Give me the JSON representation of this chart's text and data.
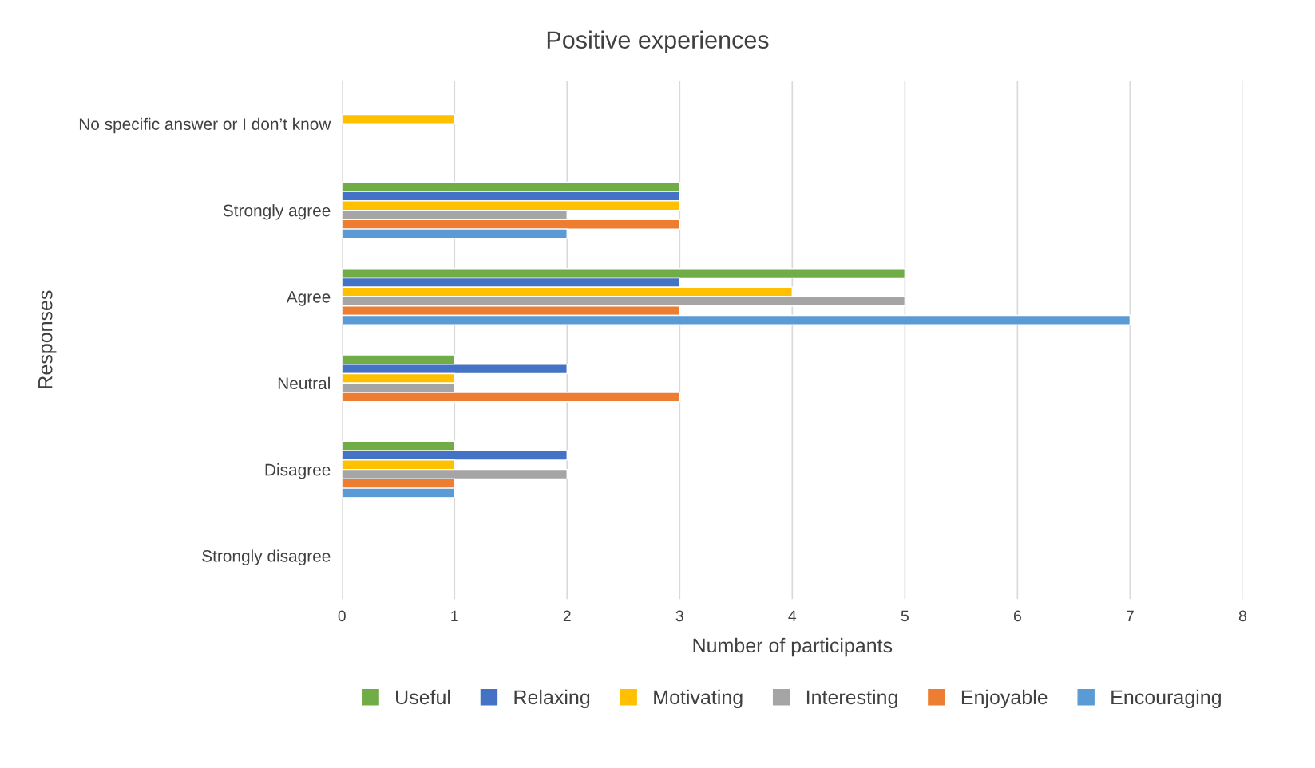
{
  "chart_data": {
    "type": "bar",
    "orientation": "horizontal",
    "title": "Positive experiences",
    "xlabel": "Number of participants",
    "ylabel": "Responses",
    "categories": [
      "No specific answer or I don’t know",
      "Strongly agree",
      "Agree",
      "Neutral",
      "Disagree",
      "Strongly disagree"
    ],
    "series": [
      {
        "name": "Useful",
        "color": "#70ad47",
        "values": [
          null,
          3,
          5,
          1,
          1,
          null
        ]
      },
      {
        "name": "Relaxing",
        "color": "#4472c4",
        "values": [
          null,
          3,
          3,
          2,
          2,
          null
        ]
      },
      {
        "name": "Motivating",
        "color": "#ffc000",
        "values": [
          1,
          3,
          4,
          1,
          1,
          null
        ]
      },
      {
        "name": "Interesting",
        "color": "#a5a5a5",
        "values": [
          null,
          2,
          5,
          1,
          2,
          null
        ]
      },
      {
        "name": "Enjoyable",
        "color": "#ed7d31",
        "values": [
          null,
          3,
          3,
          3,
          1,
          null
        ]
      },
      {
        "name": "Encouraging",
        "color": "#5b9bd5",
        "values": [
          null,
          2,
          7,
          null,
          1,
          null
        ]
      }
    ],
    "xlim": [
      0,
      8
    ],
    "xticks": [
      0,
      1,
      2,
      3,
      4,
      5,
      6,
      7,
      8
    ],
    "grid": "x",
    "legend": "bottom"
  }
}
